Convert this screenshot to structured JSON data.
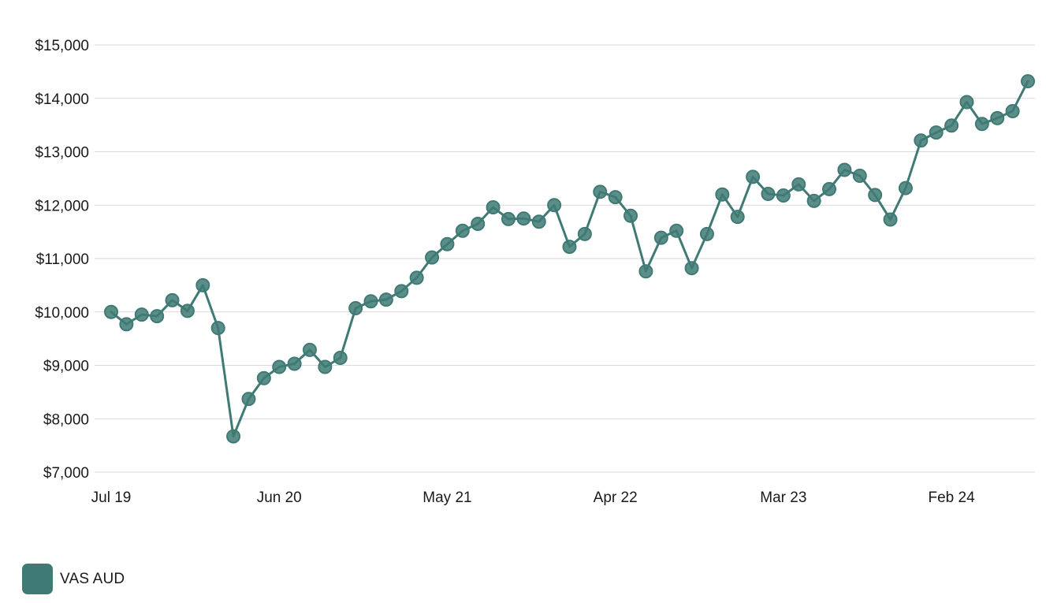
{
  "chart_data": {
    "type": "line",
    "title": "",
    "xlabel": "",
    "ylabel": "",
    "ylim": [
      7000,
      15000
    ],
    "y_ticks": [
      {
        "value": 7000,
        "label": "$7,000"
      },
      {
        "value": 8000,
        "label": "$8,000"
      },
      {
        "value": 9000,
        "label": "$9,000"
      },
      {
        "value": 10000,
        "label": "$10,000"
      },
      {
        "value": 11000,
        "label": "$11,000"
      },
      {
        "value": 12000,
        "label": "$12,000"
      },
      {
        "value": 13000,
        "label": "$13,000"
      },
      {
        "value": 14000,
        "label": "$14,000"
      },
      {
        "value": 15000,
        "label": "$15,000"
      }
    ],
    "x_ticks": [
      {
        "index": 0,
        "label": "Jul 19"
      },
      {
        "index": 11,
        "label": "Jun 20"
      },
      {
        "index": 22,
        "label": "May 21"
      },
      {
        "index": 33,
        "label": "Apr 22"
      },
      {
        "index": 44,
        "label": "Mar 23"
      },
      {
        "index": 55,
        "label": "Feb 24"
      }
    ],
    "grid": true,
    "legend_position": "bottom-left",
    "series": [
      {
        "name": "VAS AUD",
        "color": "#3f7a74",
        "values": [
          10000,
          9770,
          9950,
          9920,
          10220,
          10020,
          10500,
          9700,
          7670,
          8370,
          8760,
          8970,
          9030,
          9290,
          8970,
          9140,
          10070,
          10200,
          10230,
          10390,
          10640,
          11020,
          11270,
          11520,
          11650,
          11960,
          11740,
          11750,
          11690,
          12000,
          11220,
          11460,
          12250,
          12150,
          11800,
          10760,
          11390,
          11520,
          10820,
          11460,
          12200,
          11780,
          12530,
          12210,
          12180,
          12390,
          12080,
          12300,
          12660,
          12550,
          12190,
          11730,
          12320,
          13210,
          13360,
          13490,
          13930,
          13520,
          13630,
          13760,
          14320
        ]
      }
    ]
  }
}
